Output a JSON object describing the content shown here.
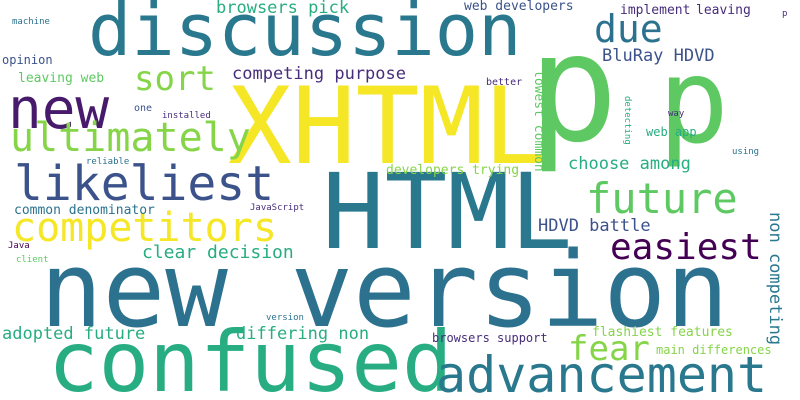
{
  "palette": {
    "yellow": "#f5e626",
    "teal": "#29788e",
    "green": "#27ad81",
    "lime": "#86d549",
    "bright_green": "#5ec962",
    "purple": "#481a6c",
    "indigo": "#3b528b",
    "blue": "#2c728e",
    "dark_purple": "#440154",
    "mid_purple": "#472d7b",
    "sea_green": "#20a486"
  },
  "words": [
    {
      "text": "new version",
      "color": "blue"
    },
    {
      "text": "confused",
      "color": "green"
    },
    {
      "text": "XHTML",
      "color": "yellow"
    },
    {
      "text": "HTML",
      "color": "teal"
    },
    {
      "text": "discussion",
      "color": "teal"
    },
    {
      "text": "p",
      "color": "bright_green"
    },
    {
      "text": "p",
      "color": "bright_green"
    },
    {
      "text": "new",
      "color": "purple"
    },
    {
      "text": "likeliest",
      "color": "indigo"
    },
    {
      "text": "competitors",
      "color": "yellow"
    },
    {
      "text": "ultimately",
      "color": "lime"
    },
    {
      "text": "advancement",
      "color": "teal"
    },
    {
      "text": "future",
      "color": "bright_green"
    },
    {
      "text": "easiest",
      "color": "dark_purple"
    },
    {
      "text": "due",
      "color": "blue"
    },
    {
      "text": "sort",
      "color": "lime"
    },
    {
      "text": "fear",
      "color": "lime"
    },
    {
      "text": "clear decision",
      "color": "green"
    },
    {
      "text": "browsers pick",
      "color": "green"
    },
    {
      "text": "competing purpose",
      "color": "mid_purple"
    },
    {
      "text": "BluRay HDVD",
      "color": "indigo"
    },
    {
      "text": "choose among",
      "color": "green"
    },
    {
      "text": "HDVD battle",
      "color": "indigo"
    },
    {
      "text": "non competing",
      "color": "teal"
    },
    {
      "text": "adopted future",
      "color": "green"
    },
    {
      "text": "differing non",
      "color": "green"
    },
    {
      "text": "web developers",
      "color": "indigo"
    },
    {
      "text": "implement",
      "color": "mid_purple"
    },
    {
      "text": "leaving",
      "color": "mid_purple"
    },
    {
      "text": "leaving web",
      "color": "bright_green"
    },
    {
      "text": "flashiest features",
      "color": "lime"
    },
    {
      "text": "developers trying",
      "color": "lime"
    },
    {
      "text": "common denominator",
      "color": "blue"
    },
    {
      "text": "lowest common",
      "color": "bright_green"
    },
    {
      "text": "browsers support",
      "color": "mid_purple"
    },
    {
      "text": "main differences",
      "color": "lime"
    },
    {
      "text": "web app",
      "color": "green"
    },
    {
      "text": "opinion",
      "color": "indigo"
    },
    {
      "text": "machine",
      "color": "blue"
    },
    {
      "text": "better",
      "color": "mid_purple"
    },
    {
      "text": "one",
      "color": "indigo"
    },
    {
      "text": "installed",
      "color": "mid_purple"
    },
    {
      "text": "reliable",
      "color": "blue"
    },
    {
      "text": "JavaScript",
      "color": "mid_purple"
    },
    {
      "text": "Java",
      "color": "dark_purple"
    },
    {
      "text": "client",
      "color": "bright_green"
    },
    {
      "text": "version",
      "color": "blue"
    },
    {
      "text": "way",
      "color": "mid_purple"
    },
    {
      "text": "using",
      "color": "blue"
    },
    {
      "text": "detecting",
      "color": "green"
    },
    {
      "text": "p",
      "color": "mid_purple"
    }
  ]
}
